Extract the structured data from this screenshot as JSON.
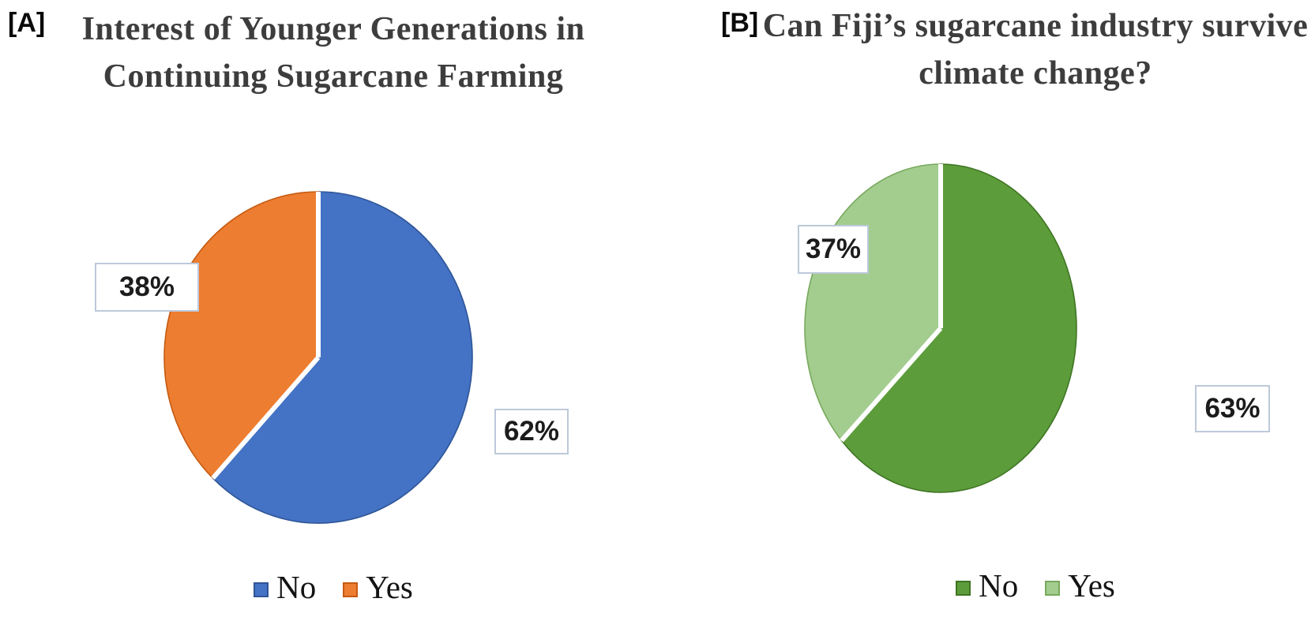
{
  "style": {
    "background": "#ffffff",
    "title_color": "#3d3d3d",
    "text_color": "#1c1c1c",
    "label_box_border": "#bdc9da"
  },
  "chart_data": [
    {
      "type": "pie",
      "panel": "A",
      "panel_tag": "[A]",
      "title": "Interest of Younger Generations in Continuing Sugarcane Farming",
      "categories": [
        "No",
        "Yes"
      ],
      "values": [
        62,
        38
      ],
      "labels": [
        "62%",
        "38%"
      ],
      "colors": [
        "#4472C4",
        "#ED7D31"
      ],
      "edge_colors": [
        "#2F5597",
        "#C55A11"
      ],
      "start_angle_deg": 0,
      "direction": "clockwise",
      "legend_position": "bottom",
      "separator_color": "#ffffff"
    },
    {
      "type": "pie",
      "panel": "B",
      "panel_tag": "[B]",
      "title": "Can Fiji’s sugarcane industry survive climate change?",
      "categories": [
        "No",
        "Yes"
      ],
      "values": [
        63,
        37
      ],
      "labels": [
        "63%",
        "37%"
      ],
      "colors": [
        "#5C9C3B",
        "#A3CC8F"
      ],
      "edge_colors": [
        "#3F7523",
        "#78A95D"
      ],
      "start_angle_deg": 0,
      "direction": "clockwise",
      "legend_position": "bottom",
      "separator_color": "#ffffff"
    }
  ]
}
